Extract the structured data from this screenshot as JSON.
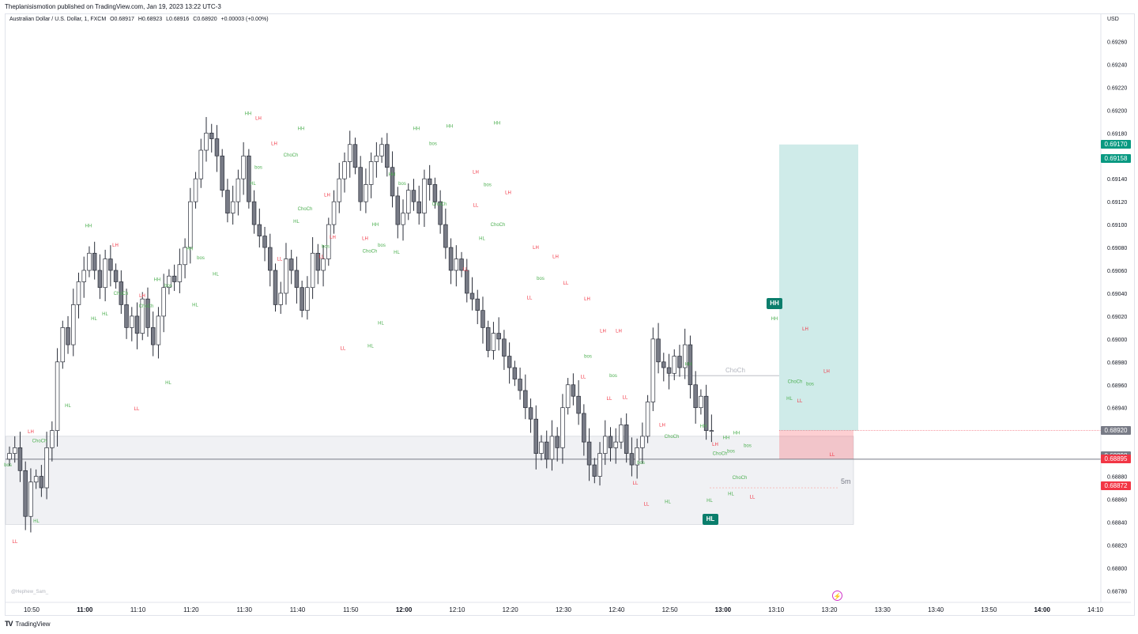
{
  "header": {
    "publisher": "Theplanisismotion published on TradingView.com, Jan 19, 2023 13:22 UTC-3",
    "symbol": "Australian Dollar / U.S. Dollar, 1, FXCM",
    "open": "O0.68917",
    "high": "H0.68923",
    "low": "L0.68916",
    "close": "C0.68920",
    "change": "+0.00003 (+0.00%)",
    "currency": "USD"
  },
  "footer": {
    "brand": "TradingView",
    "watermark": "@Hephew_Sam_"
  },
  "colors": {
    "up": "#ffffff",
    "down": "#787b86",
    "bull_label": "#4caf50",
    "bear_label": "#f23645",
    "target": "#26a69a",
    "stop": "#f7525f",
    "flag": "#0b7e6c"
  },
  "labels": {
    "timeframe": "5m",
    "choch_level": "ChoCh",
    "hh_flag": "HH",
    "hl_flag": "HL"
  },
  "chart_data": {
    "type": "candlestick",
    "ylim": [
      0.6877,
      0.69275
    ],
    "y_ticks": [
      "0.69260",
      "0.69240",
      "0.69220",
      "0.69200",
      "0.69180",
      "0.69160",
      "0.69140",
      "0.69120",
      "0.69100",
      "0.69080",
      "0.69060",
      "0.69040",
      "0.69020",
      "0.69000",
      "0.68980",
      "0.68960",
      "0.68940",
      "0.68920",
      "0.68900",
      "0.68880",
      "0.68860",
      "0.68840",
      "0.68820",
      "0.68800",
      "0.68780"
    ],
    "x_ticks": [
      {
        "label": "10:50",
        "bold": false
      },
      {
        "label": "11:00",
        "bold": true
      },
      {
        "label": "11:10",
        "bold": false
      },
      {
        "label": "11:20",
        "bold": false
      },
      {
        "label": "11:30",
        "bold": false
      },
      {
        "label": "11:40",
        "bold": false
      },
      {
        "label": "11:50",
        "bold": false
      },
      {
        "label": "12:00",
        "bold": true
      },
      {
        "label": "12:10",
        "bold": false
      },
      {
        "label": "12:20",
        "bold": false
      },
      {
        "label": "12:30",
        "bold": false
      },
      {
        "label": "12:40",
        "bold": false
      },
      {
        "label": "12:50",
        "bold": false
      },
      {
        "label": "13:00",
        "bold": true
      },
      {
        "label": "13:10",
        "bold": false
      },
      {
        "label": "13:20",
        "bold": false
      },
      {
        "label": "13:30",
        "bold": false
      },
      {
        "label": "13:40",
        "bold": false
      },
      {
        "label": "13:50",
        "bold": false
      },
      {
        "label": "14:00",
        "bold": true
      },
      {
        "label": "14:10",
        "bold": false
      }
    ],
    "closes": [
      0.689,
      0.68905,
      0.68885,
      0.68845,
      0.68875,
      0.6888,
      0.6887,
      0.68905,
      0.6892,
      0.6898,
      0.6901,
      0.68995,
      0.6903,
      0.6905,
      0.6906,
      0.69075,
      0.6906,
      0.69045,
      0.6907,
      0.6906,
      0.6905,
      0.6903,
      0.6901,
      0.6902,
      0.69005,
      0.69035,
      0.6901,
      0.68995,
      0.6902,
      0.69045,
      0.69055,
      0.6905,
      0.69065,
      0.6908,
      0.6912,
      0.6914,
      0.69165,
      0.6918,
      0.69175,
      0.6916,
      0.6913,
      0.6911,
      0.6912,
      0.6914,
      0.6916,
      0.6912,
      0.691,
      0.6909,
      0.6908,
      0.6906,
      0.6903,
      0.6904,
      0.6907,
      0.6906,
      0.69045,
      0.69025,
      0.69045,
      0.69075,
      0.6906,
      0.6907,
      0.691,
      0.6912,
      0.6914,
      0.69155,
      0.6917,
      0.6915,
      0.6912,
      0.69135,
      0.69155,
      0.6916,
      0.6917,
      0.6915,
      0.69125,
      0.691,
      0.6911,
      0.6913,
      0.6912,
      0.6911,
      0.6914,
      0.69135,
      0.6912,
      0.691,
      0.6908,
      0.6906,
      0.6907,
      0.6906,
      0.6904,
      0.69035,
      0.69025,
      0.6901,
      0.6899,
      0.69005,
      0.69,
      0.68985,
      0.68975,
      0.68965,
      0.68955,
      0.6894,
      0.6893,
      0.689,
      0.6891,
      0.68895,
      0.68915,
      0.68905,
      0.6894,
      0.6896,
      0.6895,
      0.68935,
      0.6891,
      0.6889,
      0.6888,
      0.689,
      0.68915,
      0.68905,
      0.6891,
      0.68925,
      0.689,
      0.6889,
      0.68905,
      0.68915,
      0.68945,
      0.69,
      0.6898,
      0.68975,
      0.6897,
      0.68985,
      0.68975,
      0.68995,
      0.6896,
      0.6894,
      0.6895,
      0.6892,
      0.6892
    ],
    "take_profit": 0.6917,
    "entry": 0.6892,
    "stop_loss": 0.68895,
    "demand_zone": [
      0.68838,
      0.68915
    ],
    "horizontal_line": 0.68895,
    "price_tags": [
      {
        "value": "0.69170",
        "color": "#089981"
      },
      {
        "value": "0.69158",
        "color": "#089981"
      },
      {
        "value": "0.68920",
        "color": "#787b86"
      },
      {
        "value": "0.68898",
        "color": "#787b86"
      },
      {
        "value": "0.68895",
        "color": "#f23645"
      },
      {
        "value": "0.68872",
        "color": "#f23645"
      }
    ],
    "structure_labels": [
      {
        "t": "HH",
        "x": 112,
        "p": 0.69099
      },
      {
        "t": "LH",
        "x": 146,
        "p": 0.69082
      },
      {
        "t": "HL",
        "x": 119,
        "p": 0.69018
      },
      {
        "t": "HL",
        "x": 133,
        "p": 0.69022
      },
      {
        "t": "ChoCh",
        "x": 153,
        "p": 0.6904
      },
      {
        "t": "LH",
        "x": 180,
        "p": 0.69038
      },
      {
        "t": "LL",
        "x": 173,
        "p": 0.68939
      },
      {
        "t": "HL",
        "x": 86,
        "p": 0.68942
      },
      {
        "t": "HH",
        "x": 199,
        "p": 0.69052
      },
      {
        "t": "bos",
        "x": 213,
        "p": 0.69047
      },
      {
        "t": "ChoCh",
        "x": 185,
        "p": 0.69029
      },
      {
        "t": "HL",
        "x": 213,
        "p": 0.68962
      },
      {
        "t": "HH",
        "x": 240,
        "p": 0.69079
      },
      {
        "t": "bos",
        "x": 254,
        "p": 0.69071
      },
      {
        "t": "HL",
        "x": 247,
        "p": 0.6903
      },
      {
        "t": "HL",
        "x": 273,
        "p": 0.69057
      },
      {
        "t": "HH",
        "x": 314,
        "p": 0.69197
      },
      {
        "t": "LH",
        "x": 327,
        "p": 0.69193
      },
      {
        "t": "HH",
        "x": 381,
        "p": 0.69184
      },
      {
        "t": "LH",
        "x": 347,
        "p": 0.69171
      },
      {
        "t": "ChoCh",
        "x": 368,
        "p": 0.69161
      },
      {
        "t": "bos",
        "x": 327,
        "p": 0.6915
      },
      {
        "t": "HL",
        "x": 320,
        "p": 0.69136
      },
      {
        "t": "LH",
        "x": 414,
        "p": 0.69126
      },
      {
        "t": "ChoCh",
        "x": 386,
        "p": 0.69114
      },
      {
        "t": "HL",
        "x": 375,
        "p": 0.69103
      },
      {
        "t": "LL",
        "x": 354,
        "p": 0.6907
      },
      {
        "t": "LL",
        "x": 407,
        "p": 0.69072
      },
      {
        "t": "LH",
        "x": 421,
        "p": 0.69089
      },
      {
        "t": "bos",
        "x": 412,
        "p": 0.69081
      },
      {
        "t": "HH",
        "x": 475,
        "p": 0.691
      },
      {
        "t": "LH",
        "x": 462,
        "p": 0.69088
      },
      {
        "t": "ChoCh",
        "x": 468,
        "p": 0.69077
      },
      {
        "t": "bos",
        "x": 483,
        "p": 0.69082
      },
      {
        "t": "HL",
        "x": 502,
        "p": 0.69076
      },
      {
        "t": "LL",
        "x": 434,
        "p": 0.68992
      },
      {
        "t": "HL",
        "x": 469,
        "p": 0.68994
      },
      {
        "t": "HL",
        "x": 482,
        "p": 0.69014
      },
      {
        "t": "HH",
        "x": 527,
        "p": 0.69184
      },
      {
        "t": "HH",
        "x": 569,
        "p": 0.69186
      },
      {
        "t": "HH",
        "x": 629,
        "p": 0.69189
      },
      {
        "t": "bos",
        "x": 548,
        "p": 0.69171
      },
      {
        "t": "HH",
        "x": 496,
        "p": 0.69144
      },
      {
        "t": "bos",
        "x": 509,
        "p": 0.69136
      },
      {
        "t": "LH",
        "x": 602,
        "p": 0.69146
      },
      {
        "t": "bos",
        "x": 617,
        "p": 0.69135
      },
      {
        "t": "ChoCh",
        "x": 556,
        "p": 0.69118
      },
      {
        "t": "LH",
        "x": 643,
        "p": 0.69128
      },
      {
        "t": "ChoCh",
        "x": 630,
        "p": 0.691
      },
      {
        "t": "LL",
        "x": 602,
        "p": 0.69117
      },
      {
        "t": "HL",
        "x": 610,
        "p": 0.69088
      },
      {
        "t": "LL",
        "x": 589,
        "p": 0.69061
      },
      {
        "t": "LH",
        "x": 678,
        "p": 0.6908
      },
      {
        "t": "LH",
        "x": 703,
        "p": 0.69072
      },
      {
        "t": "bos",
        "x": 684,
        "p": 0.69053
      },
      {
        "t": "LL",
        "x": 670,
        "p": 0.69036
      },
      {
        "t": "LL",
        "x": 716,
        "p": 0.69049
      },
      {
        "t": "LH",
        "x": 743,
        "p": 0.69035
      },
      {
        "t": "LH",
        "x": 763,
        "p": 0.69007
      },
      {
        "t": "LH",
        "x": 783,
        "p": 0.69007
      },
      {
        "t": "bos",
        "x": 744,
        "p": 0.68985
      },
      {
        "t": "LL",
        "x": 738,
        "p": 0.68967
      },
      {
        "t": "LL",
        "x": 771,
        "p": 0.68948
      },
      {
        "t": "bos",
        "x": 776,
        "p": 0.68968
      },
      {
        "t": "LL",
        "x": 791,
        "p": 0.68949
      },
      {
        "t": "HH",
        "x": 871,
        "p": 0.68978
      },
      {
        "t": "LH",
        "x": 838,
        "p": 0.68925
      },
      {
        "t": "ChoCh",
        "x": 850,
        "p": 0.68915
      },
      {
        "t": "bos",
        "x": 811,
        "p": 0.68892
      },
      {
        "t": "LL",
        "x": 804,
        "p": 0.68874
      },
      {
        "t": "LL",
        "x": 818,
        "p": 0.68856
      },
      {
        "t": "HL",
        "x": 845,
        "p": 0.68858
      },
      {
        "t": "HH",
        "x": 932,
        "p": 0.68918
      },
      {
        "t": "HH",
        "x": 919,
        "p": 0.68914
      },
      {
        "t": "LH",
        "x": 905,
        "p": 0.68908
      },
      {
        "t": "bos",
        "x": 946,
        "p": 0.68907
      },
      {
        "t": "HH",
        "x": 890,
        "p": 0.68924
      },
      {
        "t": "ChoCh",
        "x": 911,
        "p": 0.689
      },
      {
        "t": "bos",
        "x": 925,
        "p": 0.68902
      },
      {
        "t": "ChoCh",
        "x": 936,
        "p": 0.68879
      },
      {
        "t": "HL",
        "x": 925,
        "p": 0.68865
      },
      {
        "t": "LL",
        "x": 952,
        "p": 0.68862
      },
      {
        "t": "HL",
        "x": 898,
        "p": 0.68859
      },
      {
        "t": "HH",
        "x": 980,
        "p": 0.69018
      },
      {
        "t": "LH",
        "x": 1019,
        "p": 0.69009
      },
      {
        "t": "LH",
        "x": 1046,
        "p": 0.68972
      },
      {
        "t": "ChoCh",
        "x": 1006,
        "p": 0.68963
      },
      {
        "t": "bos",
        "x": 1025,
        "p": 0.68961
      },
      {
        "t": "HL",
        "x": 999,
        "p": 0.68948
      },
      {
        "t": "LL",
        "x": 1012,
        "p": 0.68946
      },
      {
        "t": "LL",
        "x": 1053,
        "p": 0.68899
      },
      {
        "t": "LH",
        "x": 39,
        "p": 0.68919
      },
      {
        "t": "ChoCh",
        "x": 50,
        "p": 0.68911
      },
      {
        "t": "HL",
        "x": 46,
        "p": 0.68841
      },
      {
        "t": "LL",
        "x": 19,
        "p": 0.68823
      },
      {
        "t": "bos",
        "x": 10,
        "p": 0.6889
      }
    ]
  }
}
